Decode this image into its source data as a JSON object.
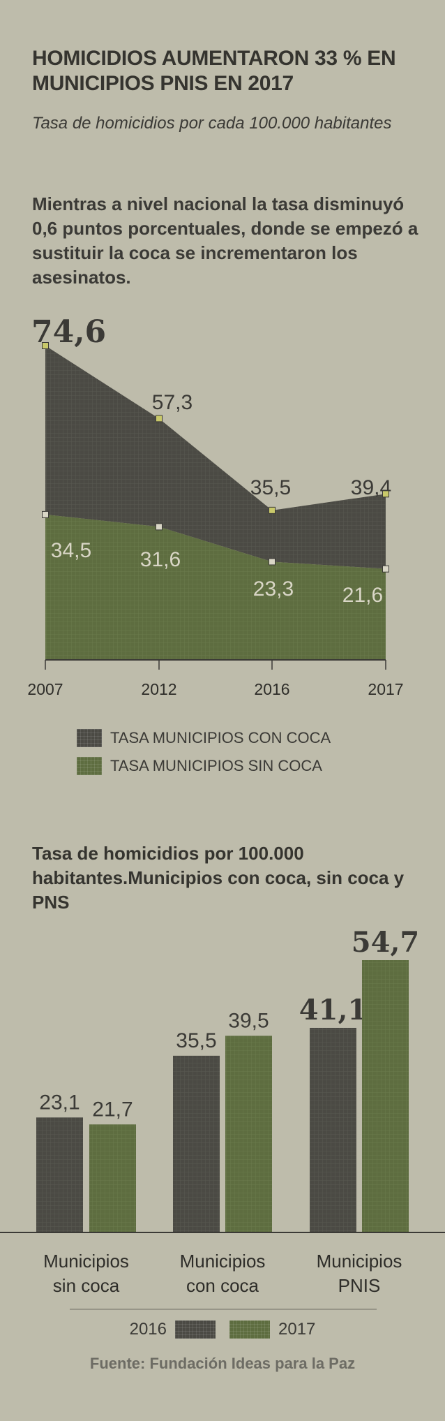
{
  "title": "HOMICIDIOS AUMENTARON 33 % EN MUNICIPIOS PNIS EN 2017",
  "subtitle": "Tasa de homicidios por cada 100.000 habitantes",
  "lead": "Mientras a nivel nacional la tasa disminuyó 0,6 puntos porcentuales, donde se empezó a sustituir la coca se incrementaron los asesinatos.",
  "colors": {
    "dark": "#4b4a44",
    "green": "#5e6d40",
    "marker": "#c9c96a",
    "background": "#bebcab"
  },
  "chart_data": [
    {
      "type": "area",
      "x": [
        "2007",
        "2012",
        "2016",
        "2017"
      ],
      "series": [
        {
          "name": "TASA MUNICIPIOS CON COCA",
          "values": [
            74.6,
            57.3,
            35.5,
            39.4
          ],
          "labels": [
            "74,6",
            "57,3",
            "35,5",
            "39,4"
          ]
        },
        {
          "name": "TASA MUNICIPIOS SIN COCA",
          "values": [
            34.5,
            31.6,
            23.3,
            21.6
          ],
          "labels": [
            "34,5",
            "31,6",
            "23,3",
            "21,6"
          ]
        }
      ],
      "ylim": [
        0,
        80
      ]
    },
    {
      "type": "bar",
      "title": "Tasa de homicidios por 100.000 habitantes.Municipios con coca, sin coca y PNS",
      "categories": [
        [
          "Municipios",
          "sin coca"
        ],
        [
          "Municipios",
          "con coca"
        ],
        [
          "Municipios",
          "PNIS"
        ]
      ],
      "series": [
        {
          "name": "2016",
          "values": [
            23.1,
            35.5,
            41.1
          ],
          "labels": [
            "23,1",
            "35,5",
            "41,1"
          ]
        },
        {
          "name": "2017",
          "values": [
            21.7,
            39.5,
            54.7
          ],
          "labels": [
            "21,7",
            "39,5",
            "54,7"
          ]
        }
      ],
      "ylim": [
        0,
        60
      ]
    }
  ],
  "source": "Fuente: Fundación Ideas para la Paz"
}
